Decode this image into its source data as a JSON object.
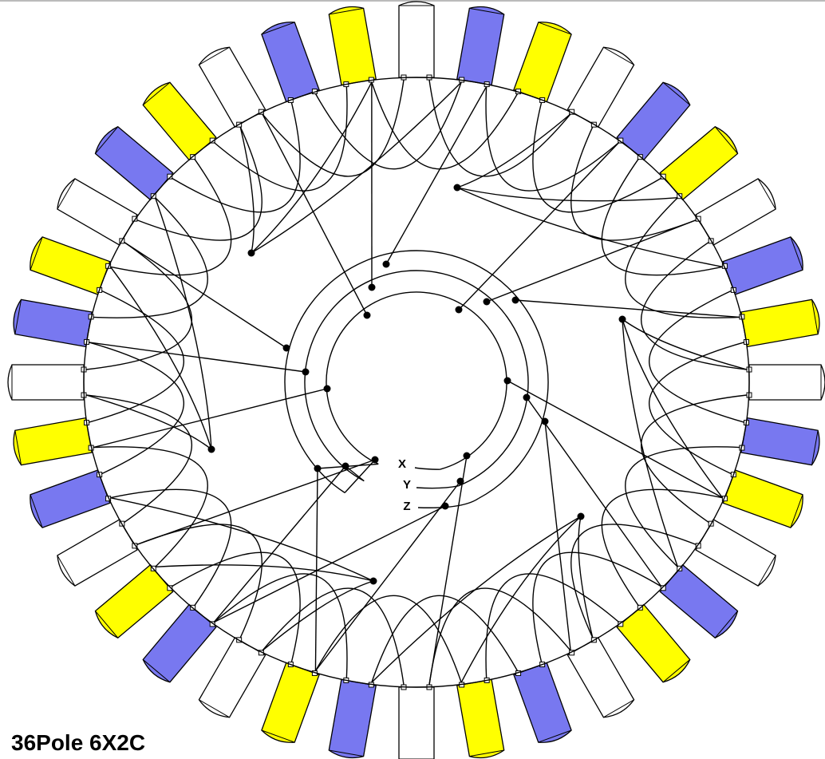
{
  "diagram": {
    "title": "36Pole 6X2C",
    "terminals": [
      {
        "label": "X"
      },
      {
        "label": "Y"
      },
      {
        "label": "Z"
      }
    ]
  }
}
